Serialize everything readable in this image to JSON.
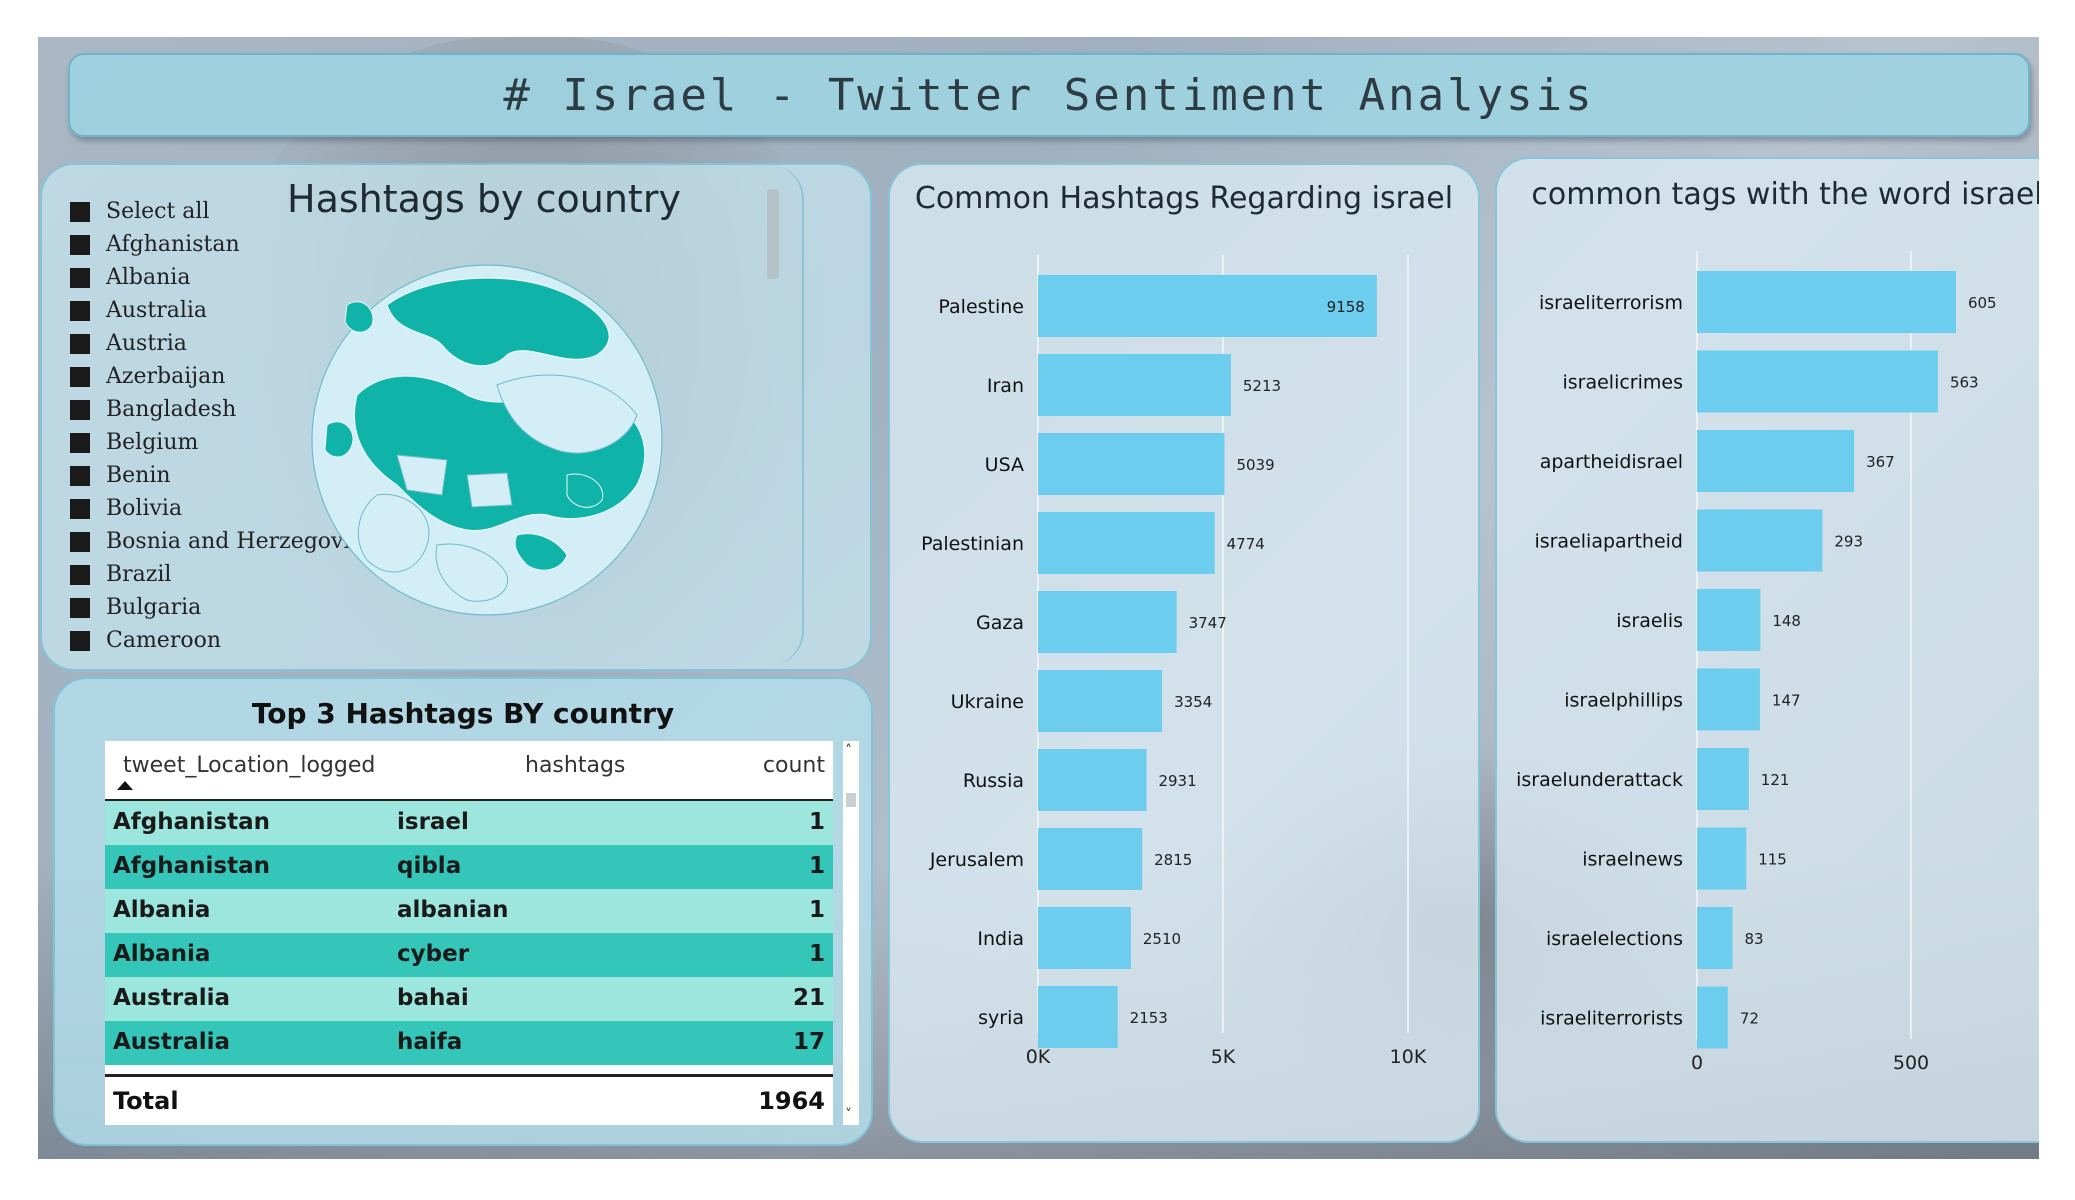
{
  "header": {
    "title": "# Israel - Twitter Sentiment Analysis"
  },
  "map_panel": {
    "title": "Hashtags by country",
    "slicer_items": [
      "Select all",
      "Afghanistan",
      "Albania",
      "Australia",
      "Austria",
      "Azerbaijan",
      "Bangladesh",
      "Belgium",
      "Benin",
      "Bolivia",
      "Bosnia and Herzegovina",
      "Brazil",
      "Bulgaria",
      "Cameroon"
    ]
  },
  "table_panel": {
    "title": "Top 3 Hashtags BY country",
    "columns": [
      "tweet_Location_logged",
      "hashtags",
      "count"
    ],
    "rows": [
      {
        "country": "Afghanistan",
        "hashtag": "israel",
        "count": "1"
      },
      {
        "country": "Afghanistan",
        "hashtag": "qibla",
        "count": "1"
      },
      {
        "country": "Albania",
        "hashtag": "albanian",
        "count": "1"
      },
      {
        "country": "Albania",
        "hashtag": "cyber",
        "count": "1"
      },
      {
        "country": "Australia",
        "hashtag": "bahai",
        "count": "21"
      },
      {
        "country": "Australia",
        "hashtag": "haifa",
        "count": "17"
      }
    ],
    "total_label": "Total",
    "total_value": "1964",
    "scroll_up": "˄",
    "scroll_down": "˅"
  },
  "colors": {
    "bar": "#6dcdef",
    "row_light": "#9de6dd",
    "row_dark": "#34c6b8",
    "title_bg": "#9ed3e1"
  },
  "chart_data": [
    {
      "type": "bar",
      "orientation": "horizontal",
      "title": "Common Hashtags Regarding israel",
      "categories": [
        "Palestine",
        "Iran",
        "USA",
        "Palestinian",
        "Gaza",
        "Ukraine",
        "Russia",
        "Jerusalem",
        "India",
        "syria"
      ],
      "values": [
        9158,
        5213,
        5039,
        4774,
        3747,
        3354,
        2931,
        2815,
        2510,
        2153
      ],
      "xlim": [
        0,
        10000
      ],
      "ticks": [
        0,
        5000,
        10000
      ],
      "tick_labels": [
        "0K",
        "5K",
        "10K"
      ],
      "grid": true
    },
    {
      "type": "bar",
      "orientation": "horizontal",
      "title": "common tags with the word israel",
      "categories": [
        "israeliterrorism",
        "israelicrimes",
        "apartheidisrael",
        "israeliapartheid",
        "israelis",
        "israelphillips",
        "israelunderattack",
        "israelnews",
        "israelelections",
        "israeliterrorists"
      ],
      "values": [
        605,
        563,
        367,
        293,
        148,
        147,
        121,
        115,
        83,
        72
      ],
      "xlim": [
        0,
        1000
      ],
      "ticks": [
        0,
        500
      ],
      "tick_labels": [
        "0",
        "500"
      ],
      "grid": true
    }
  ]
}
